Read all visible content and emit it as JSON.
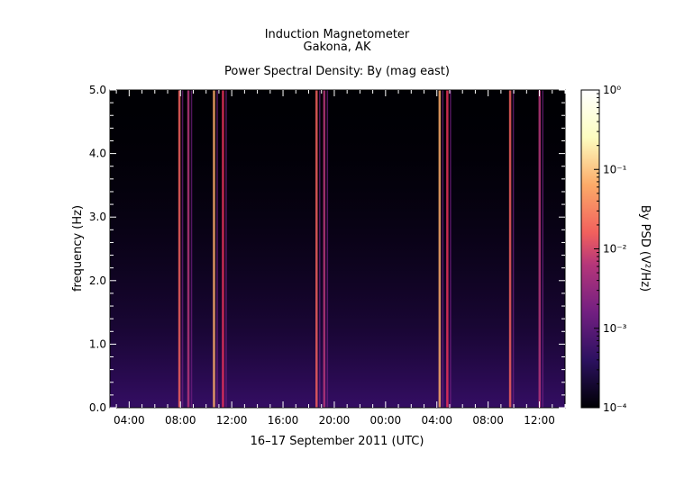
{
  "chart_data": {
    "type": "heatmap",
    "title": "Induction Magnetometer",
    "subtitle": "Gakona, AK",
    "plot_title": "Power Spectral Density: By (mag east)",
    "xlabel": "16–17 September 2011 (UTC)",
    "ylabel": "frequency (Hz)",
    "colorbar_label": "By PSD (V²/Hz)",
    "x_ticks": [
      "04:00",
      "08:00",
      "12:00",
      "16:00",
      "20:00",
      "00:00",
      "04:00",
      "08:00",
      "12:00"
    ],
    "y_ticks": [
      "0.0",
      "1.0",
      "2.0",
      "3.0",
      "4.0",
      "5.0"
    ],
    "ylim": [
      0,
      5
    ],
    "colorbar_ticks": [
      "10⁻⁴",
      "10⁻³",
      "10⁻²",
      "10⁻¹",
      "10⁰"
    ],
    "colorbar_range": [
      0.0001,
      1
    ],
    "colorbar_scale": "log",
    "colormap": [
      "#000004",
      "#2c1160",
      "#721f81",
      "#b5367a",
      "#f1605d",
      "#fcaa68",
      "#fcfdbf",
      "#ffffff"
    ],
    "x_hours_range": [
      2.5,
      38.0
    ],
    "bright_events_hours": [
      7.9,
      8.6,
      10.6,
      11.3,
      18.6,
      19.2,
      28.2,
      28.8,
      33.7,
      36.0
    ],
    "grid": false
  }
}
